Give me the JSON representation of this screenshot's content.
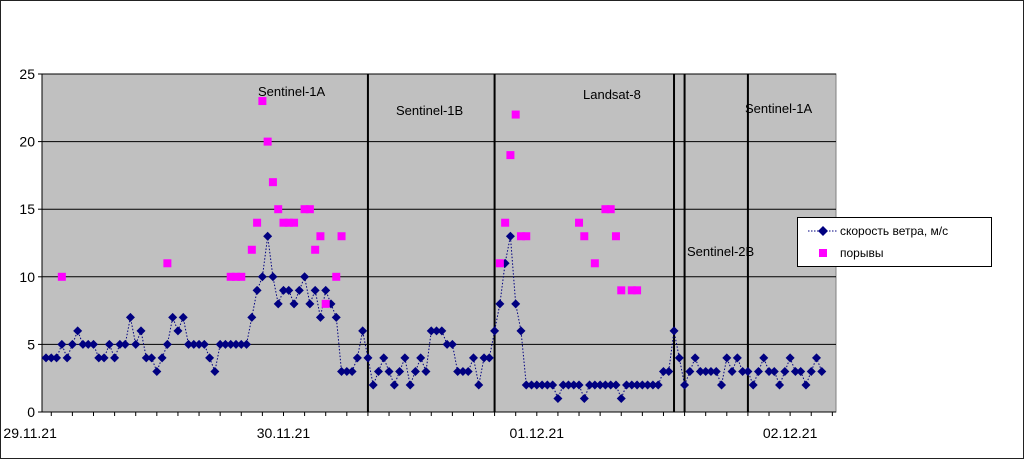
{
  "chart_data": {
    "type": "scatter",
    "title": "",
    "xlabel": "",
    "ylabel": "",
    "ylim": [
      0,
      25
    ],
    "yticks": [
      "0",
      "5",
      "10",
      "15",
      "20",
      "25"
    ],
    "xticks": [
      {
        "label": "29.11.21",
        "index": -3
      },
      {
        "label": "30.11.21",
        "index": 45
      },
      {
        "label": "01.12.21",
        "index": 93
      },
      {
        "label": "02.12.21",
        "index": 141
      }
    ],
    "grid": true,
    "plot_background": "#c0c0c0",
    "legend_position": "right",
    "series": [
      {
        "name": "скорость ветра, м/с",
        "style": "dotted-line-diamond",
        "color": "#000080",
        "x": [
          0,
          1,
          2,
          3,
          4,
          5,
          6,
          7,
          8,
          9,
          10,
          11,
          12,
          13,
          14,
          15,
          16,
          17,
          18,
          19,
          20,
          21,
          22,
          23,
          24,
          25,
          26,
          27,
          28,
          29,
          30,
          31,
          32,
          33,
          34,
          35,
          36,
          37,
          38,
          39,
          40,
          41,
          42,
          43,
          44,
          45,
          46,
          47,
          48,
          49,
          50,
          51,
          52,
          53,
          54,
          55,
          56,
          57,
          58,
          59,
          60,
          61,
          62,
          63,
          64,
          65,
          66,
          67,
          68,
          69,
          70,
          71,
          72,
          73,
          74,
          75,
          76,
          77,
          78,
          79,
          80,
          81,
          82,
          83,
          84,
          85,
          86,
          87,
          88,
          89,
          90,
          91,
          92,
          93,
          94,
          95,
          96,
          97,
          98,
          99,
          100,
          101,
          102,
          103,
          104,
          105,
          106,
          107,
          108,
          109,
          110,
          111,
          112,
          113,
          114,
          115,
          116,
          117,
          118,
          119,
          120,
          121,
          122,
          123,
          124,
          125,
          126,
          127,
          128,
          129,
          130,
          131,
          132,
          133,
          134,
          135,
          136,
          137,
          138,
          139,
          140,
          141,
          142,
          143,
          144,
          145,
          146,
          147
        ],
        "values": [
          4,
          4,
          4,
          5,
          4,
          5,
          6,
          5,
          5,
          5,
          4,
          4,
          5,
          4,
          5,
          5,
          7,
          5,
          6,
          4,
          4,
          3,
          4,
          5,
          7,
          6,
          7,
          5,
          5,
          5,
          5,
          4,
          3,
          5,
          5,
          5,
          5,
          5,
          5,
          7,
          9,
          10,
          13,
          10,
          8,
          9,
          9,
          8,
          9,
          10,
          8,
          9,
          7,
          9,
          8,
          7,
          3,
          3,
          3,
          4,
          6,
          4,
          2,
          3,
          4,
          3,
          2,
          3,
          4,
          2,
          3,
          4,
          3,
          6,
          6,
          6,
          5,
          5,
          3,
          3,
          3,
          4,
          2,
          4,
          4,
          6,
          8,
          11,
          13,
          8,
          6,
          2,
          2,
          2,
          2,
          2,
          2,
          1,
          2,
          2,
          2,
          2,
          1,
          2,
          2,
          2,
          2,
          2,
          2,
          1,
          2,
          2,
          2,
          2,
          2,
          2,
          2,
          3,
          3,
          6,
          4,
          2,
          3,
          4,
          3,
          3,
          3,
          3,
          2,
          4,
          3,
          4,
          3,
          3,
          2,
          3,
          4,
          3,
          3,
          2,
          3,
          4,
          3,
          3,
          2,
          3,
          4,
          3
        ]
      },
      {
        "name": "порывы",
        "style": "square-marker",
        "color": "#ff00ff",
        "x": [
          3,
          23,
          35,
          36,
          37,
          39,
          40,
          41,
          42,
          43,
          44,
          45,
          46,
          47,
          49,
          50,
          51,
          52,
          53,
          55,
          56,
          86,
          87,
          88,
          89,
          90,
          91,
          101,
          102,
          104,
          106,
          107,
          108,
          109,
          111,
          112
        ],
        "values": [
          10,
          11,
          10,
          10,
          10,
          12,
          14,
          23,
          20,
          17,
          15,
          14,
          14,
          14,
          15,
          15,
          12,
          13,
          8,
          10,
          13,
          11,
          14,
          19,
          22,
          13,
          13,
          14,
          13,
          11,
          15,
          15,
          13,
          9,
          9,
          9
        ]
      }
    ],
    "vertical_markers": [
      {
        "label": "Sentinel-1A",
        "x": 45,
        "line": false
      },
      {
        "label": "Sentinel-1B",
        "x": 61,
        "line": true
      },
      {
        "label": "Landsat-8",
        "x": 85,
        "line": true
      },
      {
        "label": "Sentinel-2B",
        "x": 119,
        "line": true
      },
      {
        "label": "",
        "x": 121,
        "line": true
      },
      {
        "label": "Sentinel-1A",
        "x": 133,
        "line": true
      }
    ]
  },
  "legend": {
    "wind_label": "скорость ветра, м/с",
    "gust_label": "порывы"
  }
}
